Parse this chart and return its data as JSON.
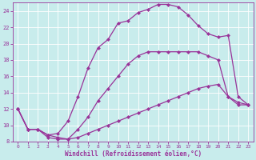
{
  "xlabel": "Windchill (Refroidissement éolien,°C)",
  "background_color": "#c8ecec",
  "line_color": "#993399",
  "grid_color": "#b0d8d8",
  "line1_x": [
    0,
    1,
    2,
    3,
    4,
    5,
    6,
    7,
    8,
    9,
    10,
    11,
    12,
    13,
    14,
    15,
    16,
    17,
    18,
    19,
    20,
    21,
    22,
    23
  ],
  "line1_y": [
    12.0,
    9.5,
    9.5,
    8.5,
    8.3,
    8.3,
    8.5,
    9.0,
    9.5,
    10.0,
    10.5,
    11.0,
    11.5,
    12.0,
    12.5,
    13.0,
    13.5,
    14.0,
    14.5,
    14.8,
    15.0,
    13.5,
    12.5,
    12.5
  ],
  "line2_x": [
    0,
    1,
    2,
    3,
    4,
    5,
    6,
    7,
    8,
    9,
    10,
    11,
    12,
    13,
    14,
    15,
    16,
    17,
    18,
    19,
    20,
    21,
    22,
    23
  ],
  "line2_y": [
    12.0,
    9.5,
    9.5,
    8.8,
    8.5,
    8.3,
    9.5,
    11.0,
    13.0,
    14.5,
    16.0,
    17.5,
    18.5,
    19.0,
    19.0,
    19.0,
    19.0,
    19.0,
    19.0,
    18.5,
    18.0,
    13.5,
    12.8,
    12.5
  ],
  "line3_x": [
    0,
    1,
    2,
    3,
    4,
    5,
    6,
    7,
    8,
    9,
    10,
    11,
    12,
    13,
    14,
    15,
    16,
    17,
    18,
    19,
    20,
    21,
    22,
    23
  ],
  "line3_y": [
    12.0,
    9.5,
    9.5,
    8.8,
    9.0,
    10.5,
    13.5,
    17.0,
    19.5,
    20.5,
    22.5,
    22.8,
    23.8,
    24.2,
    24.8,
    24.8,
    24.5,
    23.5,
    22.2,
    21.2,
    20.8,
    21.0,
    13.5,
    12.5
  ],
  "xlim": [
    0,
    23
  ],
  "ylim": [
    8,
    25
  ],
  "xticks": [
    0,
    1,
    2,
    3,
    4,
    5,
    6,
    7,
    8,
    9,
    10,
    11,
    12,
    13,
    14,
    15,
    16,
    17,
    18,
    19,
    20,
    21,
    22,
    23
  ],
  "yticks": [
    8,
    10,
    12,
    14,
    16,
    18,
    20,
    22,
    24
  ],
  "marker": "D",
  "markersize": 2.5,
  "linewidth": 0.9
}
